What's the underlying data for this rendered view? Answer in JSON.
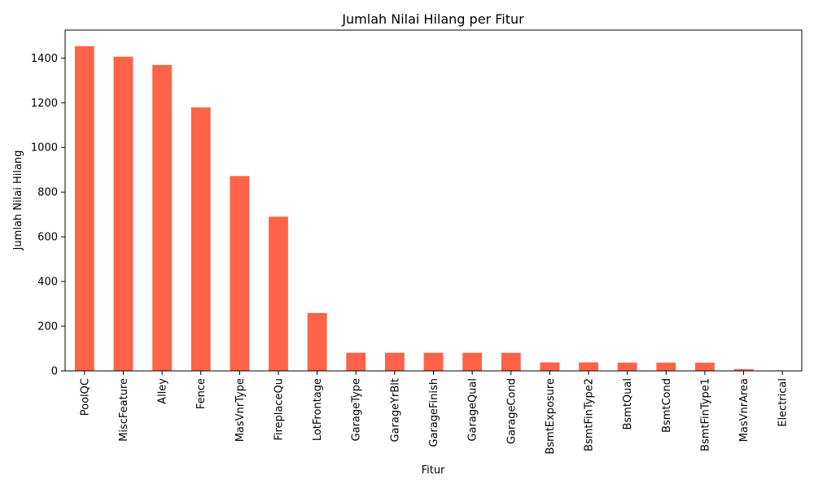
{
  "chart_data": {
    "type": "bar",
    "title": "Jumlah Nilai Hilang per Fitur",
    "xlabel": "Fitur",
    "ylabel": "Jumlah Nilai Hilang",
    "categories": [
      "PoolQC",
      "MiscFeature",
      "Alley",
      "Fence",
      "MasVnrType",
      "FireplaceQu",
      "LotFrontage",
      "GarageType",
      "GarageYrBlt",
      "GarageFinish",
      "GarageQual",
      "GarageCond",
      "BsmtExposure",
      "BsmtFinType2",
      "BsmtQual",
      "BsmtCond",
      "BsmtFinType1",
      "MasVnrArea",
      "Electrical"
    ],
    "values": [
      1453,
      1406,
      1369,
      1179,
      872,
      690,
      259,
      81,
      81,
      81,
      81,
      81,
      38,
      38,
      37,
      37,
      37,
      8,
      1
    ],
    "ylim": [
      0,
      1525
    ],
    "yticks": [
      0,
      200,
      400,
      600,
      800,
      1000,
      1200,
      1400
    ],
    "grid": false,
    "bar_color": "#ff6347"
  }
}
